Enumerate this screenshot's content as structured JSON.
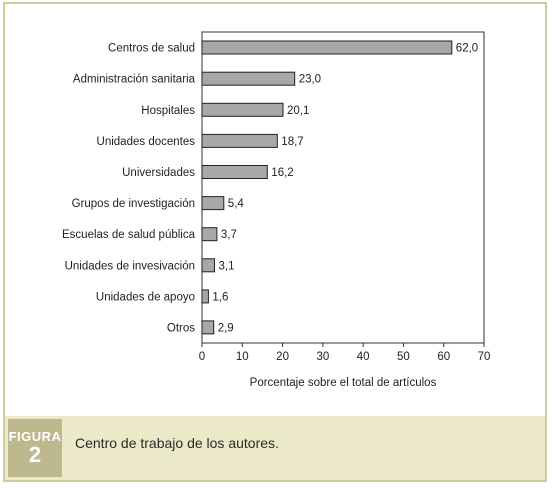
{
  "chart_data": {
    "type": "bar",
    "orientation": "horizontal",
    "categories": [
      "Centros de salud",
      "Administración sanitaria",
      "Hospitales",
      "Unidades docentes",
      "Universidades",
      "Grupos de investigación",
      "Escuelas de salud pública",
      "Unidades de invesivación",
      "Unidades de apoyo",
      "Otros"
    ],
    "values": [
      62.0,
      23.0,
      20.1,
      18.7,
      16.2,
      5.4,
      3.7,
      3.1,
      1.6,
      2.9
    ],
    "value_labels": [
      "62,0",
      "23,0",
      "20,1",
      "18,7",
      "16,2",
      "5,4",
      "3,7",
      "3,1",
      "1,6",
      "2,9"
    ],
    "xlabel": "Porcentaje sobre el total de artículos",
    "xlim": [
      0,
      70
    ],
    "xticks": [
      0,
      10,
      20,
      30,
      40,
      50,
      60,
      70
    ],
    "bar_color": "#a8a8a8",
    "grid": false
  },
  "figure": {
    "label_word": "FIGURA",
    "label_number": "2",
    "caption": "Centro de trabajo de los autores."
  }
}
